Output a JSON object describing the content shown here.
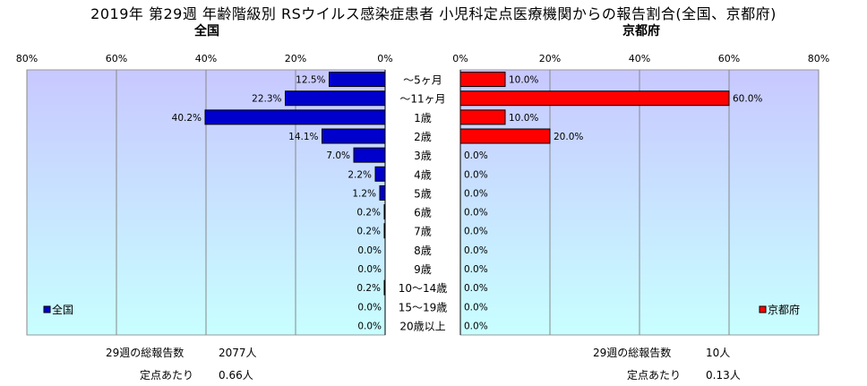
{
  "chart_data": {
    "type": "bar",
    "title": "2019年 第29週 年齢階級別 RSウイルス感染症患者 小児科定点医療機関からの報告割合(全国、京都府)",
    "categories": [
      "～5ヶ月",
      "～11ヶ月",
      "1歳",
      "2歳",
      "3歳",
      "4歳",
      "5歳",
      "6歳",
      "7歳",
      "8歳",
      "9歳",
      "10～14歳",
      "15～19歳",
      "20歳以上"
    ],
    "xlim": [
      0,
      80
    ],
    "ticks": [
      "80%",
      "60%",
      "40%",
      "20%",
      "0%"
    ],
    "ticks_right": [
      "0%",
      "20%",
      "40%",
      "60%",
      "80%"
    ],
    "grid": true,
    "series": [
      {
        "name": "全国",
        "subtitle": "全国",
        "values": [
          12.5,
          22.3,
          40.2,
          14.1,
          7.0,
          2.2,
          1.2,
          0.2,
          0.2,
          0.0,
          0.0,
          0.2,
          0.0,
          0.0
        ],
        "labels": [
          "12.5%",
          "22.3%",
          "40.2%",
          "14.1%",
          "7.0%",
          "2.2%",
          "1.2%",
          "0.2%",
          "0.2%",
          "0.0%",
          "0.0%",
          "0.2%",
          "0.0%",
          "0.0%"
        ],
        "color": "#0000CC",
        "legend": "全国",
        "legend_position": "bottom-left"
      },
      {
        "name": "京都府",
        "subtitle": "京都府",
        "values": [
          10.0,
          60.0,
          10.0,
          20.0,
          0.0,
          0.0,
          0.0,
          0.0,
          0.0,
          0.0,
          0.0,
          0.0,
          0.0,
          0.0
        ],
        "labels": [
          "10.0%",
          "60.0%",
          "10.0%",
          "20.0%",
          "0.0%",
          "0.0%",
          "0.0%",
          "0.0%",
          "0.0%",
          "0.0%",
          "0.0%",
          "0.0%",
          "0.0%",
          "0.0%"
        ],
        "color": "#FF0000",
        "legend": "京都府",
        "legend_position": "bottom-right"
      }
    ]
  },
  "stats": {
    "left": {
      "total_label": "29週の総報告数",
      "total_value": "2077人",
      "per_label": "定点あたり",
      "per_value": "0.66人"
    },
    "right": {
      "total_label": "29週の総報告数",
      "total_value": "10人",
      "per_label": "定点あたり",
      "per_value": "0.13人"
    }
  },
  "colors": {
    "plot_bg_top": "#C8C8FF",
    "plot_bg_bottom": "#C8FFFF",
    "grid": "#888888"
  }
}
